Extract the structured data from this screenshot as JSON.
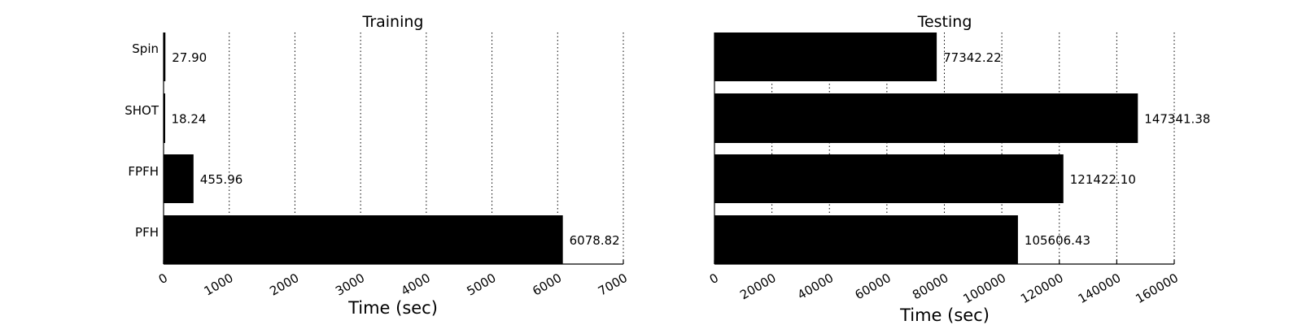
{
  "chart_data": [
    {
      "type": "bar",
      "orientation": "horizontal",
      "title": "Training",
      "xlabel": "Time (sec)",
      "ylabel": "",
      "categories": [
        "Spin",
        "SHOT",
        "FPFH",
        "PFH"
      ],
      "values": [
        27.9,
        18.24,
        455.96,
        6078.82
      ],
      "value_labels": [
        "27.90",
        "18.24",
        "455.96",
        "6078.82"
      ],
      "xlim": [
        0,
        7000
      ],
      "xticks": [
        0,
        1000,
        2000,
        3000,
        4000,
        5000,
        6000,
        7000
      ],
      "grid": "vertical dotted",
      "bar_color": "#000000"
    },
    {
      "type": "bar",
      "orientation": "horizontal",
      "title": "Testing",
      "xlabel": "Time (sec)",
      "ylabel": "",
      "categories": [
        "Spin",
        "SHOT",
        "FPFH",
        "PFH"
      ],
      "values": [
        77342.22,
        147341.38,
        121422.1,
        105606.43
      ],
      "value_labels": [
        "77342.22",
        "147341.38",
        "121422.10",
        "105606.43"
      ],
      "xlim": [
        0,
        160000
      ],
      "xticks": [
        0,
        20000,
        40000,
        60000,
        80000,
        100000,
        120000,
        140000,
        160000
      ],
      "grid": "vertical dotted",
      "bar_color": "#000000"
    }
  ]
}
